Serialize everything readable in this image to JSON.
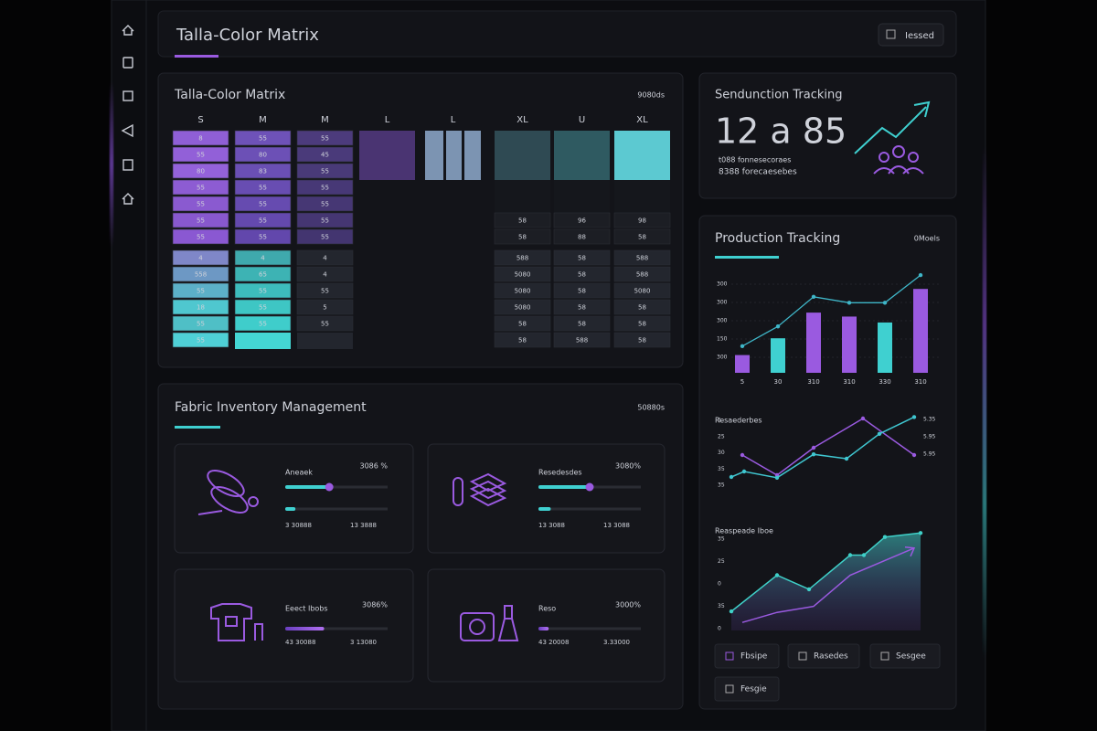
{
  "header": {
    "title": "Talla-Color Matrix",
    "button": "Iessed"
  },
  "matrix": {
    "title": "Talla-Color Matrix",
    "meta": "9080ds",
    "columns": [
      "S",
      "M",
      "M",
      "L",
      "L",
      "XL",
      "U",
      "XL"
    ],
    "rows": [
      [
        {
          "label": "8",
          "color": "#8f5fd6"
        },
        {
          "label": "55",
          "color": "#6e52b8"
        },
        {
          "label": "55",
          "color": "#4c3b7c"
        },
        {
          "color": "#4a3472"
        },
        {
          "color": "#7c94b2"
        },
        {
          "color": "#2f4a53"
        },
        {
          "color": "#2f5a61"
        },
        {
          "color": "#5cc9d1"
        }
      ],
      [
        {
          "label": "55",
          "color": "#9260d8"
        },
        {
          "label": "80",
          "color": "#6c50b6"
        },
        {
          "label": "45",
          "color": "#4a3a7a"
        },
        {
          "color": "#4a3472"
        },
        {
          "color": "#7c94b2"
        },
        {
          "color": "#2f4a53"
        },
        {
          "color": "#2f5a61"
        },
        {
          "color": "#5cc9d1"
        }
      ],
      [
        {
          "label": "80",
          "color": "#9462da"
        },
        {
          "label": "83",
          "color": "#6a4fb4"
        },
        {
          "label": "55",
          "color": "#493a78"
        },
        {
          "color": "#4a3472"
        },
        {
          "color": "#7c94b2"
        },
        {
          "color": "#2f4a53"
        },
        {
          "color": "#2f5a61"
        },
        {
          "color": "#5cc9d1"
        }
      ],
      [
        {
          "label": "55",
          "color": "#8d5cd3"
        },
        {
          "label": "55",
          "color": "#684db2"
        },
        {
          "label": "55",
          "color": "#473876"
        },
        null,
        null,
        {
          "color": "#15171c"
        },
        {
          "color": "#15171c"
        },
        {
          "color": "#15171c"
        }
      ],
      [
        {
          "label": "55",
          "color": "#8a5ad0"
        },
        {
          "label": "55",
          "color": "#664bb0"
        },
        {
          "label": "55",
          "color": "#463774"
        },
        null,
        null,
        {
          "color": "#15171c"
        },
        {
          "color": "#15171c"
        },
        {
          "color": "#15171c"
        }
      ],
      [
        {
          "label": "55",
          "color": "#8858ce"
        },
        {
          "label": "55",
          "color": "#6449ae"
        },
        {
          "label": "55",
          "color": "#453672"
        },
        null,
        null,
        {
          "label": "58",
          "color": "#1c1e24"
        },
        {
          "label": "96",
          "color": "#1c1e24"
        },
        {
          "label": "98",
          "color": "#1c1e24"
        }
      ],
      [
        {
          "label": "55",
          "color": "#8a58d2"
        },
        {
          "label": "55",
          "color": "#6247ac"
        },
        {
          "label": "55",
          "color": "#433570"
        },
        null,
        null,
        {
          "label": "58",
          "color": "#1c1e24"
        },
        {
          "label": "88",
          "color": "#1c1e24"
        },
        {
          "label": "58",
          "color": "#1c1e24"
        }
      ],
      [
        {
          "label": "4",
          "color": "#7f87c8"
        },
        {
          "label": "4",
          "color": "#3fa9ad"
        },
        {
          "label": "4",
          "color": "#23262e"
        },
        null,
        null,
        {
          "label": "588",
          "color": "#23262e"
        },
        {
          "label": "58",
          "color": "#23262e"
        },
        {
          "label": "588",
          "color": "#23262e"
        }
      ],
      [
        {
          "label": "558",
          "color": "#6d98c4"
        },
        {
          "label": "65",
          "color": "#3db3b4"
        },
        {
          "label": "4",
          "color": "#23262e"
        },
        null,
        null,
        {
          "label": "5080",
          "color": "#23262e"
        },
        {
          "label": "58",
          "color": "#23262e"
        },
        {
          "label": "588",
          "color": "#23262e"
        }
      ],
      [
        {
          "label": "55",
          "color": "#5cb0c8"
        },
        {
          "label": "55",
          "color": "#3dbcbc"
        },
        {
          "label": "55",
          "color": "#23262e"
        },
        null,
        null,
        {
          "label": "5080",
          "color": "#23262e"
        },
        {
          "label": "58",
          "color": "#23262e"
        },
        {
          "label": "5080",
          "color": "#23262e"
        }
      ],
      [
        {
          "label": "18",
          "color": "#4fc7cf"
        },
        {
          "label": "55",
          "color": "#3ec6c4"
        },
        {
          "label": "5",
          "color": "#23262e"
        },
        null,
        null,
        {
          "label": "5080",
          "color": "#23262e"
        },
        {
          "label": "58",
          "color": "#23262e"
        },
        {
          "label": "58",
          "color": "#23262e"
        }
      ],
      [
        {
          "label": "55",
          "color": "#4fbfc6"
        },
        {
          "label": "55",
          "color": "#3fcdcb"
        },
        {
          "label": "55",
          "color": "#23262e"
        },
        null,
        null,
        {
          "label": "58",
          "color": "#23262e"
        },
        {
          "label": "58",
          "color": "#23262e"
        },
        {
          "label": "58",
          "color": "#23262e"
        }
      ],
      [
        {
          "label": "55",
          "color": "#4fd0d6"
        },
        {
          "color": "#44d6d4"
        },
        {
          "color": "#23262e"
        },
        null,
        null,
        {
          "label": "58",
          "color": "#23262e"
        },
        {
          "label": "588",
          "color": "#23262e"
        },
        {
          "label": "58",
          "color": "#23262e"
        }
      ]
    ]
  },
  "summary": {
    "title": "Sendunction Tracking",
    "value": "12 a 85",
    "caption": "t088 fonnesecoraes",
    "subcaption": "8388 forecaesebes"
  },
  "production": {
    "title": "Production Tracking",
    "meta": "0Moels",
    "bars": {
      "ylim": [
        0,
        100
      ],
      "values": [
        18,
        35,
        61,
        57,
        51,
        85
      ],
      "colors": [
        "#9a5ae0",
        "#3fd0d0",
        "#9a5ae0",
        "#9a5ae0",
        "#3fd0d0",
        "#9a5ae0"
      ],
      "line": [
        27,
        47,
        77,
        71,
        71,
        99
      ],
      "line_color": "#3fb6c8",
      "x_labels": [
        "5",
        "30",
        "310",
        "310",
        "330",
        "310"
      ],
      "y_labels": [
        "300",
        "300",
        "300",
        "150",
        "300"
      ]
    },
    "trend": {
      "title": "Resaederbes",
      "xlim": [
        0,
        100
      ],
      "ylim": [
        0,
        100
      ],
      "series": [
        {
          "color": "#9a5ae0",
          "x": [
            6,
            25,
            45,
            72,
            100
          ],
          "values": [
            40,
            12.5,
            50,
            90,
            40
          ]
        },
        {
          "color": "#3fc6d0",
          "x": [
            0,
            7,
            25,
            45,
            63,
            81,
            100
          ],
          "values": [
            10,
            17.5,
            9,
            41,
            35,
            69,
            92
          ]
        }
      ],
      "y_labels": [
        "5",
        "25",
        "30",
        "35",
        "35"
      ],
      "right_labels": [
        "5.35",
        "5.95",
        "5.95"
      ]
    },
    "area": {
      "title": "Reaspeade Iboe",
      "xlim": [
        0,
        104
      ],
      "ylim": [
        0,
        100
      ],
      "series": [
        {
          "color": "#3fd0c8",
          "x": [
            0,
            25,
            42.5,
            65,
            72.5,
            84,
            103.5
          ],
          "values": [
            19,
            55,
            41,
            75,
            75,
            93,
            97
          ]
        },
        {
          "color": "#9a5ae0",
          "x": [
            6,
            25,
            45,
            65,
            100
          ],
          "values": [
            8,
            18,
            24,
            55,
            82
          ]
        }
      ],
      "y_labels": [
        "35",
        "25",
        "0",
        "35",
        "0"
      ]
    },
    "buttons": [
      "Fbsipe",
      "Rasedes",
      "Sesgee",
      "Fesgie"
    ]
  },
  "fabric": {
    "title": "Fabric Inventory Management",
    "meta": "50880s",
    "cards": [
      {
        "name": "Aneaek",
        "percent": "3086 %",
        "color": "#3fd0d0",
        "bars": [
          43,
          10
        ],
        "foot": [
          "3 30888",
          "13 3888"
        ]
      },
      {
        "name": "Resedesdes",
        "percent": "3080%",
        "color": "#3fd0d0",
        "bars": [
          50,
          12
        ],
        "foot": [
          "13 3088",
          "13 3088"
        ]
      },
      {
        "name": "Eeect Ibobs",
        "percent": "3086%",
        "color": "#9a5ae0",
        "bars": [
          38
        ],
        "foot": [
          "43 30088",
          "3 13080"
        ]
      },
      {
        "name": "Reso",
        "percent": "3000%",
        "color": "#9a5ae0",
        "bars": [
          10
        ],
        "foot": [
          "43 20008",
          "3.33000"
        ]
      }
    ]
  }
}
